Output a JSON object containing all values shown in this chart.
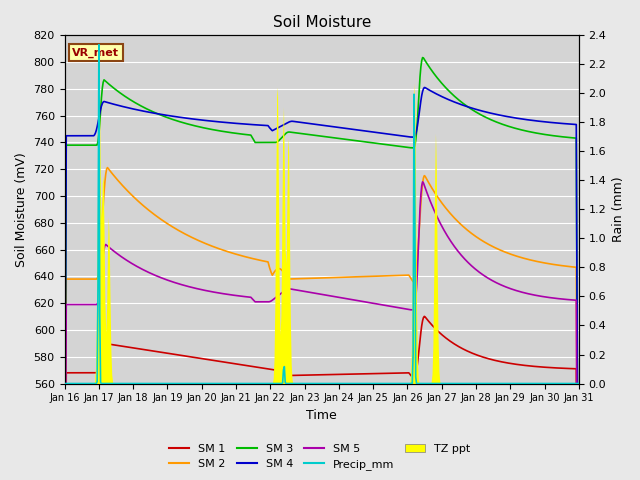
{
  "title": "Soil Moisture",
  "xlabel": "Time",
  "ylabel_left": "Soil Moisture (mV)",
  "ylabel_right": "Rain (mm)",
  "ylim_left": [
    560,
    820
  ],
  "ylim_right": [
    0.0,
    2.4
  ],
  "bg_color": "#e8e8e8",
  "plot_bg_color": "#d4d4d4",
  "legend_label": "VR_met",
  "x_tick_labels": [
    "Jan 16",
    "Jan 17",
    "Jan 18",
    "Jan 19",
    "Jan 20",
    "Jan 21",
    "Jan 22",
    "Jan 23",
    "Jan 24",
    "Jan 25",
    "Jan 26",
    "Jan 27",
    "Jan 28",
    "Jan 29",
    "Jan 30",
    "Jan 31"
  ],
  "colors": {
    "SM1": "#cc0000",
    "SM2": "#ff9900",
    "SM3": "#00bb00",
    "SM4": "#0000cc",
    "SM5": "#aa00aa",
    "Precip_mm": "#00cccc",
    "TZ_ppt": "#ffff00"
  },
  "n_points": 600
}
